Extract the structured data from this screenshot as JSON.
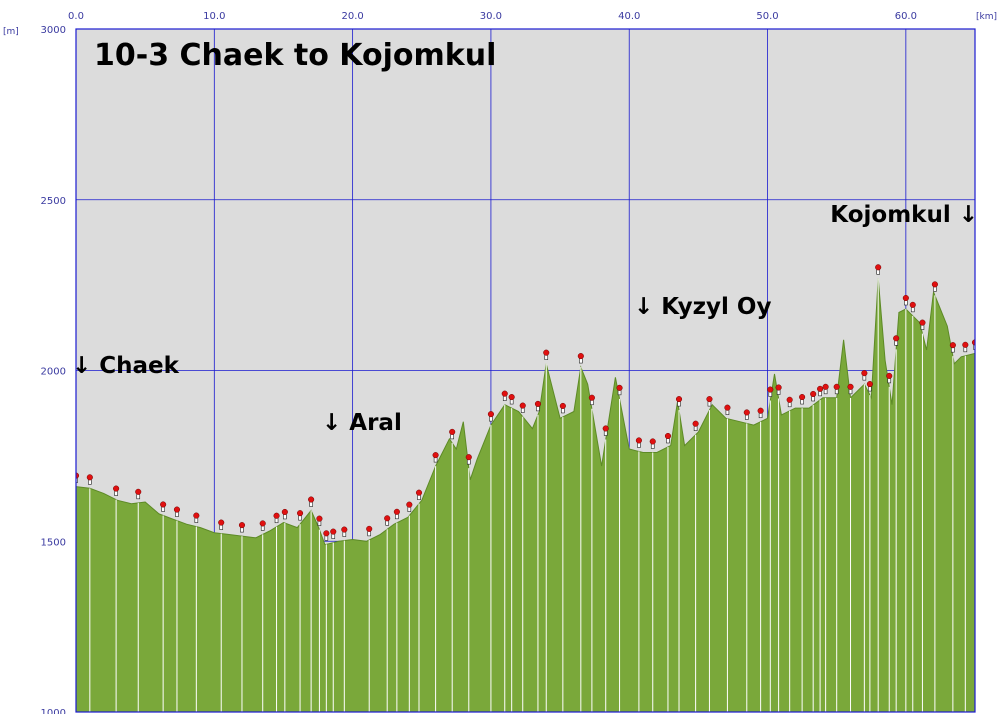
{
  "chart_data": {
    "type": "area",
    "title": "10-3 Chaek to Kojomkul",
    "x_unit": "[km]",
    "y_unit": "[m]",
    "xlim": [
      0,
      65
    ],
    "ylim": [
      1000,
      3000
    ],
    "x_ticks": [
      "0.0",
      "10.0",
      "20.0",
      "30.0",
      "40.0",
      "50.0",
      "60.0"
    ],
    "y_ticks": [
      "1000",
      "1500",
      "2000",
      "2500",
      "3000"
    ],
    "grid": true,
    "colors": {
      "fill": "#7aa83a",
      "fill_dark": "#5d8a26",
      "grid": "#1a1ad0",
      "background": "#dcdcdc",
      "waypoint": "#e01010"
    },
    "annotations": [
      {
        "label": "↓ Chaek",
        "x": 0
      },
      {
        "label": "↓ Aral",
        "x": 18.3
      },
      {
        "label": "↓ Kyzyl Oy",
        "x": 40.6
      },
      {
        "label": "Kojomkul ↓",
        "x": 64.8
      }
    ],
    "profile": {
      "x": [
        0,
        1,
        2,
        3,
        4,
        5,
        6,
        7,
        8,
        9,
        10,
        11,
        12,
        13,
        14,
        15,
        16,
        17,
        17.5,
        18,
        19,
        20,
        21,
        22,
        23,
        24,
        25,
        26,
        27,
        27.5,
        28,
        28.5,
        29,
        30,
        31,
        32,
        33,
        33.5,
        34,
        35,
        36,
        36.5,
        37,
        38,
        38.5,
        39,
        40,
        41,
        42,
        43,
        43.5,
        44,
        45,
        46,
        47,
        48,
        49,
        50,
        50.5,
        51,
        52,
        53,
        54,
        55,
        55.5,
        56,
        57,
        57.5,
        58,
        58.5,
        59,
        59.5,
        60,
        61,
        61.5,
        62,
        63,
        63.5,
        64,
        65
      ],
      "y": [
        1660,
        1655,
        1640,
        1620,
        1610,
        1615,
        1580,
        1565,
        1550,
        1540,
        1525,
        1520,
        1515,
        1510,
        1530,
        1555,
        1540,
        1590,
        1545,
        1490,
        1500,
        1505,
        1500,
        1520,
        1550,
        1570,
        1620,
        1720,
        1800,
        1770,
        1850,
        1680,
        1740,
        1840,
        1900,
        1880,
        1830,
        1880,
        2020,
        1860,
        1880,
        2010,
        1960,
        1720,
        1850,
        1980,
        1770,
        1760,
        1760,
        1780,
        1910,
        1780,
        1820,
        1900,
        1860,
        1850,
        1840,
        1860,
        1990,
        1870,
        1890,
        1890,
        1920,
        1920,
        2090,
        1920,
        1960,
        1920,
        2270,
        2030,
        1900,
        2170,
        2180,
        2140,
        2060,
        2230,
        2130,
        2020,
        2040,
        2050
      ]
    },
    "waypoints_x": [
      0,
      1,
      2.9,
      4.5,
      6.3,
      7.3,
      8.7,
      10.5,
      12,
      13.5,
      14.5,
      15.1,
      16.2,
      17,
      17.6,
      18.1,
      18.6,
      19.4,
      21.2,
      22.5,
      23.2,
      24.1,
      24.8,
      26,
      27.2,
      28.4,
      30,
      31,
      31.5,
      32.3,
      33.4,
      34,
      35.2,
      36.5,
      37.3,
      38.3,
      39.3,
      40.7,
      41.7,
      42.8,
      43.6,
      44.8,
      45.8,
      47.1,
      48.5,
      49.5,
      50.2,
      50.8,
      51.6,
      52.5,
      53.3,
      53.8,
      54.2,
      55,
      56,
      57,
      57.4,
      58,
      58.8,
      59.3,
      60,
      60.5,
      61.2,
      62.1,
      63.4,
      64.3,
      65
    ]
  }
}
